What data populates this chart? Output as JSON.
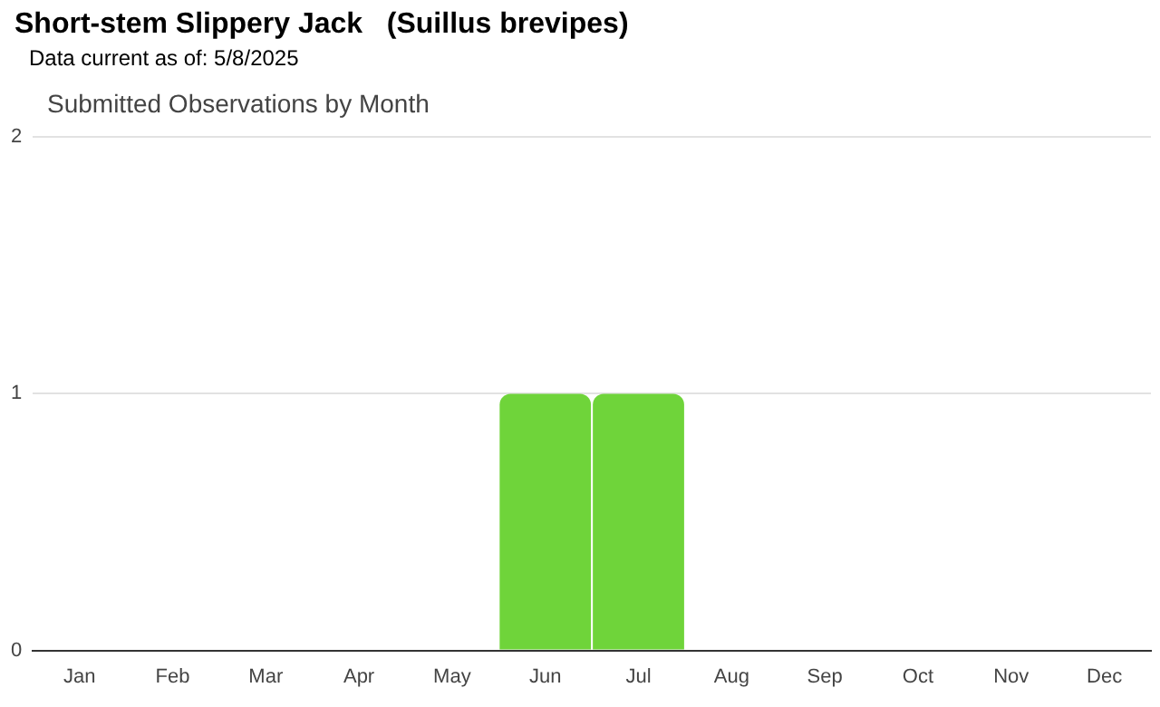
{
  "chart_data": {
    "type": "bar",
    "title": "Short-stem Slippery Jack   (Suillus brevipes)",
    "subtitle": "Data current as of: 5/8/2025",
    "annotations": [
      "Submitted Observations by Month"
    ],
    "categories": [
      "Jan",
      "Feb",
      "Mar",
      "Apr",
      "May",
      "Jun",
      "Jul",
      "Aug",
      "Sep",
      "Oct",
      "Nov",
      "Dec"
    ],
    "values": [
      0,
      0,
      0,
      0,
      0,
      1,
      1,
      0,
      0,
      0,
      0,
      0
    ],
    "color": "#6fd43a",
    "ylim": [
      0,
      2
    ],
    "yticks": [
      0,
      1,
      2
    ],
    "grid": "y",
    "legend": false
  }
}
